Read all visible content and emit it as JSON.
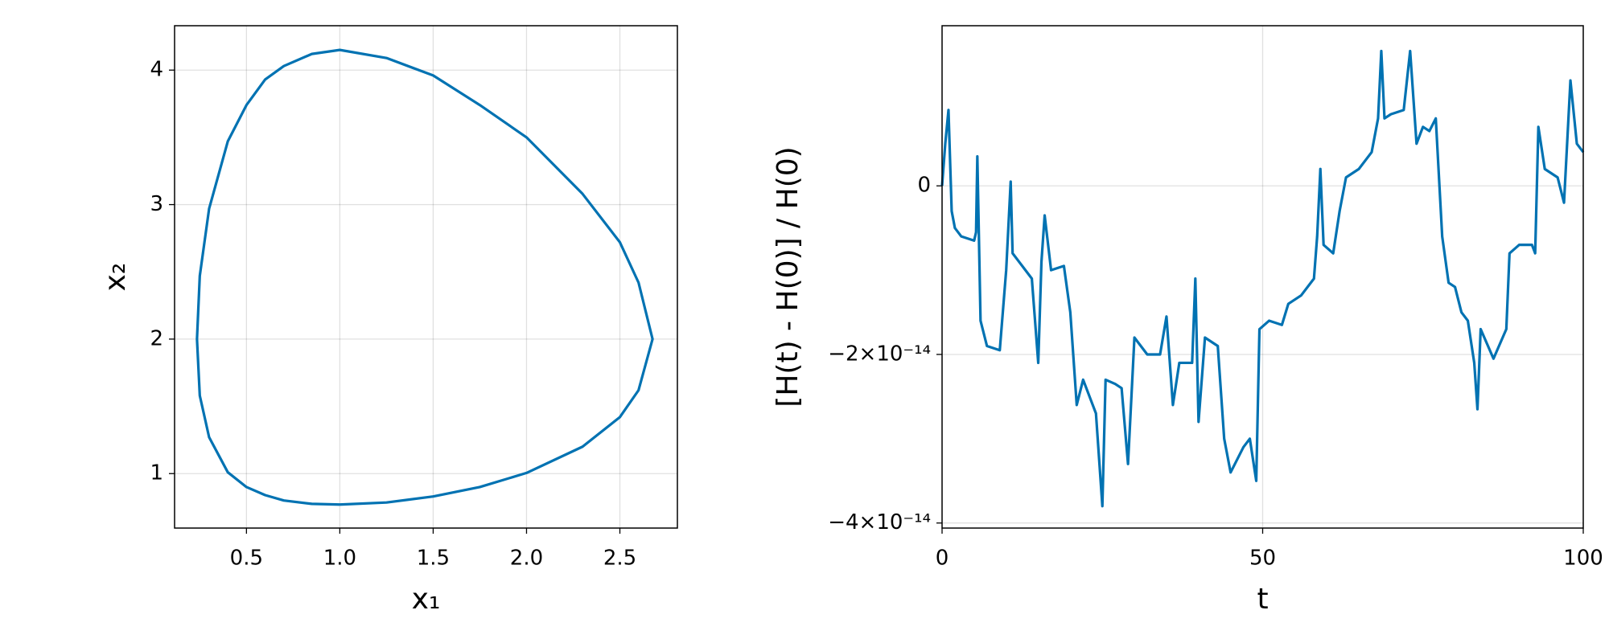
{
  "chart_data": [
    {
      "type": "line",
      "xlabel": "x₁",
      "ylabel": "x₂",
      "x": [
        1.0,
        1.25,
        1.5,
        1.75,
        2.0,
        2.3,
        2.5,
        2.6,
        2.675,
        2.6,
        2.5,
        2.3,
        2.0,
        1.75,
        1.5,
        1.25,
        1.0,
        0.85,
        0.7,
        0.6,
        0.5,
        0.4,
        0.3,
        0.25,
        0.235,
        0.25,
        0.3,
        0.4,
        0.5,
        0.6,
        0.7,
        0.85,
        1.0
      ],
      "series": [
        {
          "color": "#0072b2",
          "values": [
            0.77,
            0.785,
            0.83,
            0.9,
            1.005,
            1.2,
            1.42,
            1.62,
            2.0,
            2.42,
            2.72,
            3.08,
            3.5,
            3.74,
            3.96,
            4.09,
            4.15,
            4.12,
            4.03,
            3.93,
            3.74,
            3.47,
            2.97,
            2.47,
            2.0,
            1.58,
            1.27,
            1.01,
            0.9,
            0.84,
            0.8,
            0.775,
            0.77
          ]
        }
      ],
      "xlim": [
        0.115,
        2.808
      ],
      "ylim": [
        0.595,
        4.33
      ],
      "xticks": [
        0.5,
        {
          "value": 1,
          "label": "1.0"
        },
        1.5,
        {
          "value": 2,
          "label": "2.0"
        },
        2.5
      ],
      "yticks": [
        1,
        2,
        3,
        4
      ],
      "grid": true
    },
    {
      "type": "line",
      "xlabel": "t",
      "ylabel": "[H(t) - H(0)] / H(0)",
      "x": [
        0,
        0.5,
        1,
        1.5,
        2,
        3,
        5,
        5.3,
        5.5,
        6,
        7,
        9,
        10,
        10.7,
        11,
        13,
        14,
        15,
        15.5,
        16,
        17,
        19,
        20,
        21,
        22,
        24,
        25,
        25.5,
        27,
        28,
        29,
        30,
        32,
        34,
        35,
        36,
        37,
        39,
        39.5,
        40,
        41,
        43,
        44,
        45,
        47,
        48,
        49,
        49.5,
        51,
        53,
        54,
        56,
        58,
        58.5,
        59,
        59.5,
        61,
        62,
        63,
        65,
        67,
        68,
        68.5,
        69,
        70,
        72,
        73,
        74,
        75,
        76,
        77,
        78,
        79,
        80,
        81,
        82,
        83,
        83.5,
        84,
        86,
        88,
        88.5,
        90,
        92,
        92.5,
        93,
        94,
        96,
        97,
        98,
        99,
        100
      ],
      "series": [
        {
          "color": "#0072b2",
          "values": [
            0,
            5e-15,
            9e-15,
            -3e-15,
            -5e-15,
            -6e-15,
            -6.5e-15,
            -5.5e-15,
            3.5e-15,
            -1.6e-14,
            -1.9e-14,
            -1.95e-14,
            -1e-14,
            5e-16,
            -8e-15,
            -1e-14,
            -1.1e-14,
            -2.1e-14,
            -9e-15,
            -3.5e-15,
            -1e-14,
            -9.5e-15,
            -1.5e-14,
            -2.6e-14,
            -2.3e-14,
            -2.7e-14,
            -3.8e-14,
            -2.3e-14,
            -2.35e-14,
            -2.4e-14,
            -3.3e-14,
            -1.8e-14,
            -2e-14,
            -2e-14,
            -1.55e-14,
            -2.6e-14,
            -2.1e-14,
            -2.1e-14,
            -1.1e-14,
            -2.8e-14,
            -1.8e-14,
            -1.9e-14,
            -3e-14,
            -3.4e-14,
            -3.1e-14,
            -3e-14,
            -3.5e-14,
            -1.7e-14,
            -1.6e-14,
            -1.65e-14,
            -1.4e-14,
            -1.3e-14,
            -1.1e-14,
            -6e-15,
            2e-15,
            -7e-15,
            -8e-15,
            -3e-15,
            1e-15,
            2e-15,
            4e-15,
            8e-15,
            1.6e-14,
            8e-15,
            8.5e-15,
            9e-15,
            1.6e-14,
            5e-15,
            7e-15,
            6.5e-15,
            8e-15,
            -6e-15,
            -1.15e-14,
            -1.2e-14,
            -1.5e-14,
            -1.6e-14,
            -2.1e-14,
            -2.65e-14,
            -1.7e-14,
            -2.05e-14,
            -1.7e-14,
            -8e-15,
            -7e-15,
            -7e-15,
            -8e-15,
            7e-15,
            2e-15,
            1e-15,
            -2e-15,
            1.25e-14,
            5e-15,
            4e-15
          ]
        }
      ],
      "xlim": [
        0,
        100
      ],
      "ylim": [
        -4.06e-14,
        1.9e-14
      ],
      "xticks": [
        0,
        50,
        100
      ],
      "yticks": [
        {
          "value": -4e-14,
          "label": "−4×10⁻¹⁴"
        },
        {
          "value": -2e-14,
          "label": "−2×10⁻¹⁴"
        },
        0
      ],
      "grid": true
    }
  ]
}
